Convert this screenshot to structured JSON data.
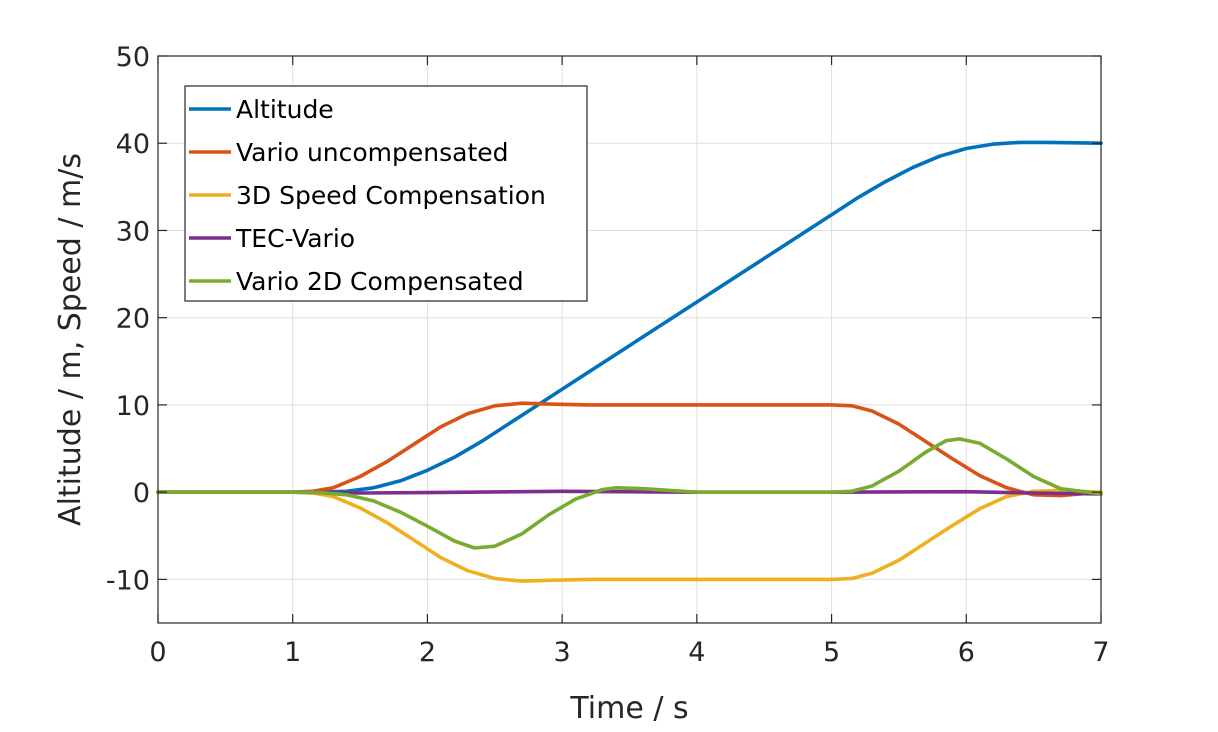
{
  "chart_data": {
    "type": "line",
    "title": "",
    "xlabel": "Time / s",
    "ylabel": "Altitude / m, Speed / m/s",
    "xlim": [
      0,
      7
    ],
    "ylim": [
      -15,
      50
    ],
    "xticks": [
      0,
      1,
      2,
      3,
      4,
      5,
      6,
      7
    ],
    "yticks": [
      -10,
      0,
      10,
      20,
      30,
      40,
      50
    ],
    "xtick_labels": [
      "0",
      "1",
      "2",
      "3",
      "4",
      "5",
      "6",
      "7"
    ],
    "ytick_labels": [
      "-10",
      "0",
      "10",
      "20",
      "30",
      "40",
      "50"
    ],
    "grid": true,
    "legend_position": "top-left",
    "series": [
      {
        "name": "Altitude",
        "color": "#0072BD",
        "points": [
          [
            0,
            0
          ],
          [
            1,
            0
          ],
          [
            1.2,
            0
          ],
          [
            1.4,
            0.1
          ],
          [
            1.6,
            0.5
          ],
          [
            1.8,
            1.3
          ],
          [
            2.0,
            2.5
          ],
          [
            2.2,
            4.0
          ],
          [
            2.4,
            5.8
          ],
          [
            2.6,
            7.8
          ],
          [
            2.8,
            9.8
          ],
          [
            3.0,
            11.8
          ],
          [
            3.5,
            16.8
          ],
          [
            4.0,
            21.8
          ],
          [
            4.5,
            26.8
          ],
          [
            5.0,
            31.8
          ],
          [
            5.2,
            33.8
          ],
          [
            5.4,
            35.6
          ],
          [
            5.6,
            37.2
          ],
          [
            5.8,
            38.5
          ],
          [
            6.0,
            39.4
          ],
          [
            6.2,
            39.9
          ],
          [
            6.4,
            40.1
          ],
          [
            6.6,
            40.1
          ],
          [
            7.0,
            40.0
          ]
        ]
      },
      {
        "name": "Vario uncompensated",
        "color": "#D95319",
        "points": [
          [
            0,
            0
          ],
          [
            1,
            0
          ],
          [
            1.15,
            0.1
          ],
          [
            1.3,
            0.5
          ],
          [
            1.5,
            1.8
          ],
          [
            1.7,
            3.5
          ],
          [
            1.9,
            5.5
          ],
          [
            2.1,
            7.5
          ],
          [
            2.3,
            9.0
          ],
          [
            2.5,
            9.9
          ],
          [
            2.7,
            10.2
          ],
          [
            2.9,
            10.1
          ],
          [
            3.2,
            10.0
          ],
          [
            4.0,
            10.0
          ],
          [
            5.0,
            10.0
          ],
          [
            5.15,
            9.9
          ],
          [
            5.3,
            9.3
          ],
          [
            5.5,
            7.8
          ],
          [
            5.7,
            5.8
          ],
          [
            5.9,
            3.8
          ],
          [
            6.1,
            1.9
          ],
          [
            6.3,
            0.5
          ],
          [
            6.5,
            -0.3
          ],
          [
            6.7,
            -0.4
          ],
          [
            7.0,
            0.0
          ]
        ]
      },
      {
        "name": "3D Speed Compensation",
        "color": "#EDB120",
        "points": [
          [
            0,
            0
          ],
          [
            1,
            0
          ],
          [
            1.15,
            -0.1
          ],
          [
            1.3,
            -0.5
          ],
          [
            1.5,
            -1.8
          ],
          [
            1.7,
            -3.5
          ],
          [
            1.9,
            -5.5
          ],
          [
            2.1,
            -7.5
          ],
          [
            2.3,
            -9.0
          ],
          [
            2.5,
            -9.9
          ],
          [
            2.7,
            -10.2
          ],
          [
            2.9,
            -10.1
          ],
          [
            3.2,
            -10.0
          ],
          [
            4.0,
            -10.0
          ],
          [
            5.0,
            -10.0
          ],
          [
            5.15,
            -9.9
          ],
          [
            5.3,
            -9.3
          ],
          [
            5.5,
            -7.8
          ],
          [
            5.7,
            -5.8
          ],
          [
            5.9,
            -3.8
          ],
          [
            6.1,
            -1.9
          ],
          [
            6.3,
            -0.5
          ],
          [
            6.5,
            0.1
          ],
          [
            6.7,
            0.2
          ],
          [
            7.0,
            0.0
          ]
        ]
      },
      {
        "name": "TEC-Vario",
        "color": "#7E2F8E",
        "points": [
          [
            0,
            0
          ],
          [
            1,
            0
          ],
          [
            1.5,
            -0.1
          ],
          [
            2.0,
            -0.05
          ],
          [
            3.0,
            0.1
          ],
          [
            4.0,
            0.0
          ],
          [
            5.0,
            0.0
          ],
          [
            6.0,
            0.05
          ],
          [
            6.5,
            -0.1
          ],
          [
            7.0,
            -0.2
          ]
        ]
      },
      {
        "name": "Vario 2D Compensated",
        "color": "#77AC30",
        "points": [
          [
            0,
            0
          ],
          [
            1,
            0
          ],
          [
            1.2,
            -0.05
          ],
          [
            1.4,
            -0.3
          ],
          [
            1.6,
            -1.0
          ],
          [
            1.8,
            -2.3
          ],
          [
            2.0,
            -3.9
          ],
          [
            2.2,
            -5.6
          ],
          [
            2.35,
            -6.4
          ],
          [
            2.5,
            -6.2
          ],
          [
            2.7,
            -4.8
          ],
          [
            2.9,
            -2.6
          ],
          [
            3.1,
            -0.8
          ],
          [
            3.3,
            0.3
          ],
          [
            3.4,
            0.5
          ],
          [
            3.6,
            0.4
          ],
          [
            3.8,
            0.2
          ],
          [
            4.0,
            0.0
          ],
          [
            4.5,
            0.0
          ],
          [
            5.0,
            0.0
          ],
          [
            5.15,
            0.1
          ],
          [
            5.3,
            0.7
          ],
          [
            5.5,
            2.4
          ],
          [
            5.7,
            4.6
          ],
          [
            5.85,
            5.9
          ],
          [
            5.95,
            6.1
          ],
          [
            6.1,
            5.6
          ],
          [
            6.3,
            3.8
          ],
          [
            6.5,
            1.8
          ],
          [
            6.7,
            0.4
          ],
          [
            6.9,
            0.0
          ],
          [
            7.0,
            -0.2
          ]
        ]
      }
    ]
  }
}
